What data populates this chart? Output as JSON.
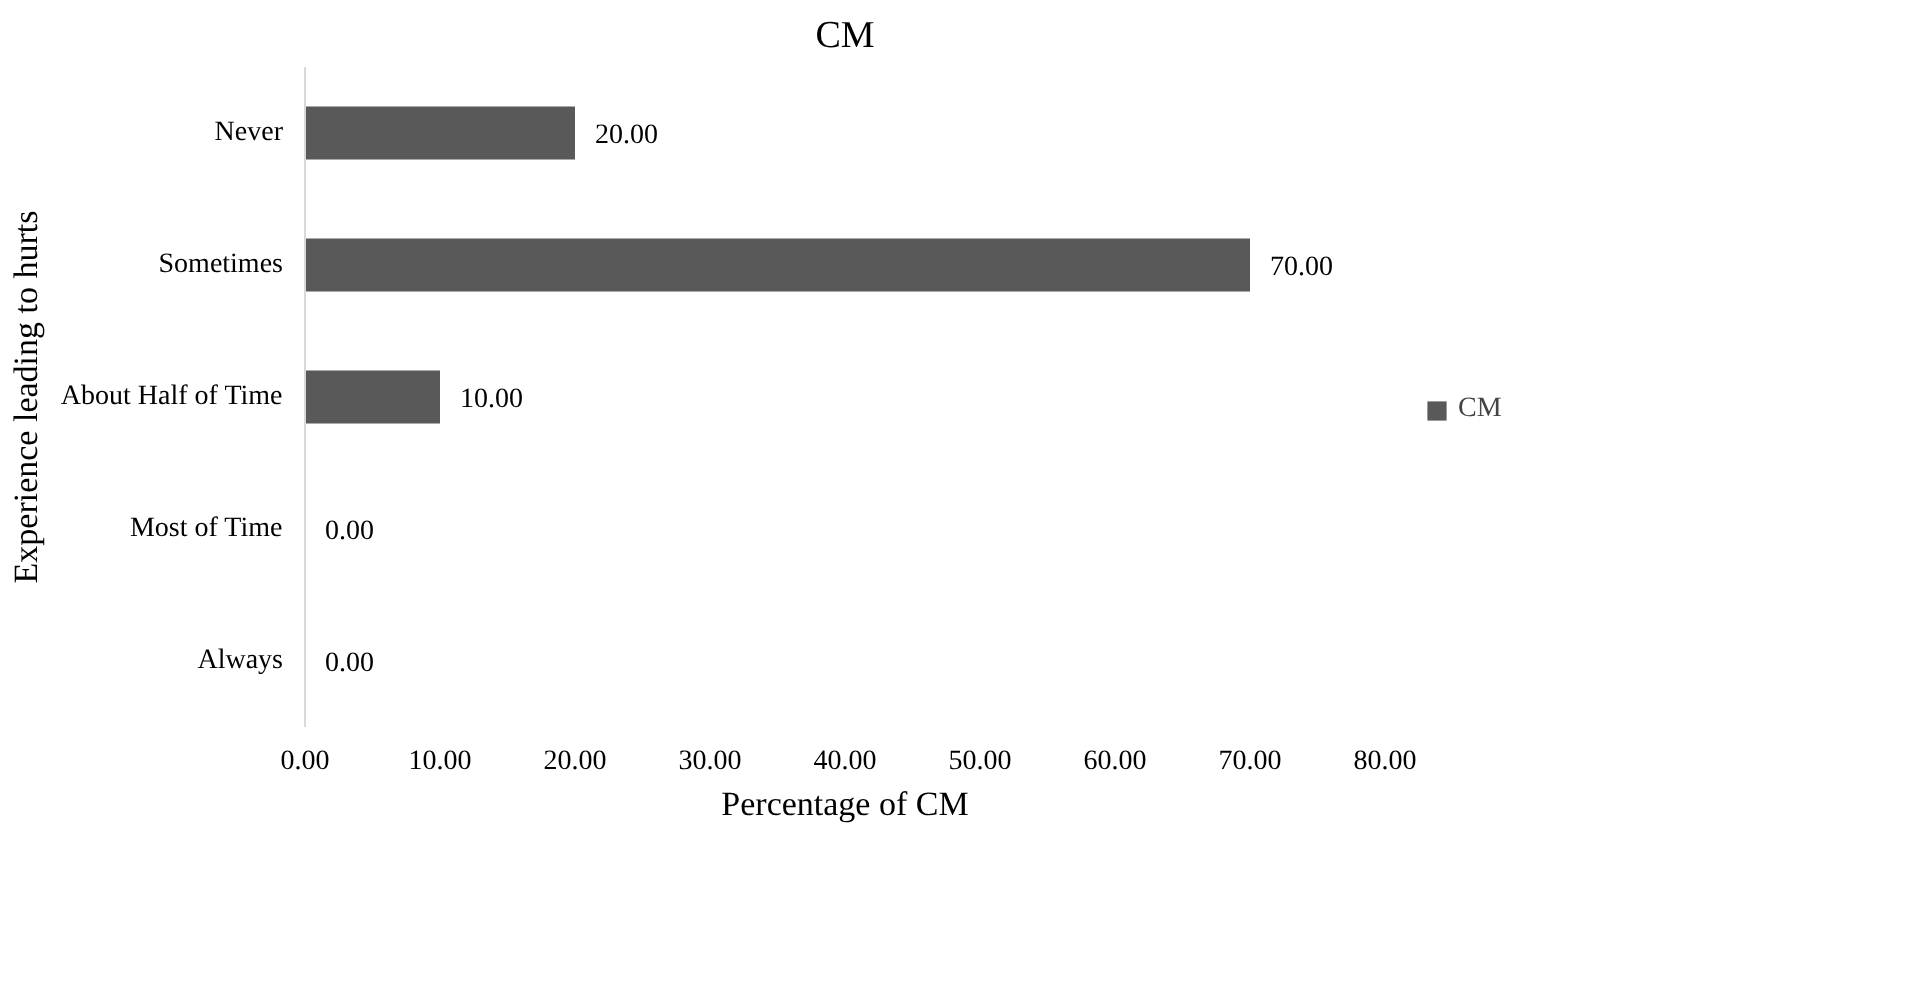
{
  "chart_data": {
    "type": "bar",
    "orientation": "horizontal",
    "title": "CM",
    "xlabel": "Percentage of CM",
    "ylabel": "Experience leading to hurts",
    "categories": [
      "Never",
      "Sometimes",
      "About Half of Time",
      "Most of Time",
      "Always"
    ],
    "series": [
      {
        "name": "CM",
        "color": "#595959",
        "values": [
          20,
          70,
          10,
          0,
          0
        ],
        "value_labels": [
          "20.00",
          "70.00",
          "10.00",
          "0.00",
          "0.00"
        ]
      }
    ],
    "xlim": [
      0,
      80
    ],
    "xticks": [
      {
        "value": 0,
        "label": "0.00"
      },
      {
        "value": 10,
        "label": "10.00"
      },
      {
        "value": 20,
        "label": "20.00"
      },
      {
        "value": 30,
        "label": "30.00"
      },
      {
        "value": 40,
        "label": "40.00"
      },
      {
        "value": 50,
        "label": "50.00"
      },
      {
        "value": 60,
        "label": "60.00"
      },
      {
        "value": 70,
        "label": "70.00"
      },
      {
        "value": 80,
        "label": "80.00"
      }
    ],
    "grid": false,
    "legend": "right"
  }
}
